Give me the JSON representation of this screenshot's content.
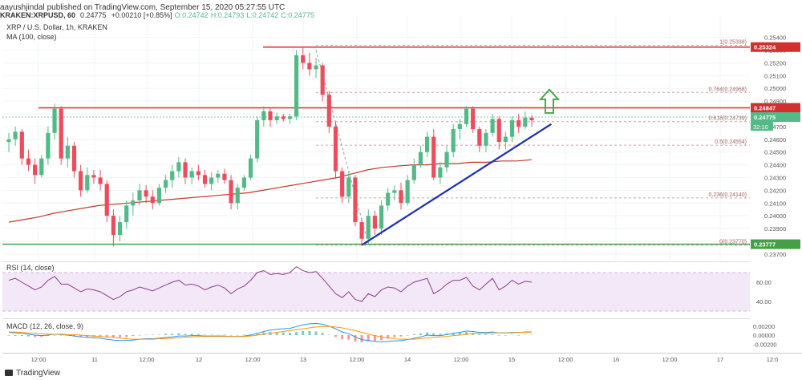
{
  "header": {
    "publisher": "aayushjindal",
    "published_text": "published on TradingView.com, September 15, 2020 05:27:55 UTC",
    "symbol": "KRAKEN:XRPUSD, 60",
    "last": "0.24775",
    "change": "+0.00210 [+0.85%]",
    "ohlc": {
      "o": "O:0.24742",
      "h": "H:0.24793",
      "l": "L:0.24742",
      "c": "C:0.24775"
    }
  },
  "legend": {
    "title": "XRP / U.S. Dollar, 1h, KRAKEN",
    "ma": "MA (100, close)",
    "rsi": "RSI (14, close)",
    "macd": "MACD (12, 26, close, 9)"
  },
  "footer": {
    "brand": "TradingView"
  },
  "colors": {
    "bull": "#53b987",
    "bear": "#eb4d5c",
    "ma": "#c0392b",
    "trend": "#1a2fb3",
    "resistance": "#d32f2f",
    "support": "#43a047",
    "fib": "#cfa0a0",
    "arrow": "#3fae49",
    "rsi": "#8e3a8e",
    "macd": "#2196f3",
    "signal": "#ff9800"
  },
  "chart_data": {
    "type": "candlestick",
    "symbol": "XRP/USD",
    "interval": "1h",
    "exchange": "KRAKEN",
    "ylim": [
      0.2368,
      0.2553
    ],
    "price_ticks": [
      "0.25400",
      "0.25300",
      "0.25200",
      "0.25100",
      "0.25000",
      "0.24900",
      "0.24800",
      "0.24700",
      "0.24600",
      "0.24500",
      "0.24400",
      "0.24300",
      "0.24200",
      "0.24100",
      "0.24000",
      "0.23900",
      "0.23800",
      "0.23700"
    ],
    "time_labels": [
      "12:00",
      "11",
      "12:00",
      "12",
      "12:00",
      "13",
      "12:00",
      "14",
      "12:00",
      "15",
      "12:00",
      "16",
      "12:00",
      "17",
      "12:0"
    ],
    "candles": [
      [
        0.2458,
        0.2465,
        0.245,
        0.246
      ],
      [
        0.246,
        0.247,
        0.2455,
        0.2466
      ],
      [
        0.2466,
        0.2468,
        0.244,
        0.2445
      ],
      [
        0.2445,
        0.2452,
        0.2435,
        0.244
      ],
      [
        0.244,
        0.2445,
        0.2425,
        0.2432
      ],
      [
        0.2432,
        0.2448,
        0.243,
        0.2445
      ],
      [
        0.2445,
        0.247,
        0.244,
        0.2465
      ],
      [
        0.2465,
        0.2488,
        0.246,
        0.2484
      ],
      [
        0.2484,
        0.2486,
        0.244,
        0.2445
      ],
      [
        0.2445,
        0.2462,
        0.2438,
        0.2455
      ],
      [
        0.2455,
        0.2458,
        0.243,
        0.2435
      ],
      [
        0.2435,
        0.244,
        0.2415,
        0.242
      ],
      [
        0.242,
        0.2438,
        0.2418,
        0.2432
      ],
      [
        0.2432,
        0.2436,
        0.2425,
        0.243
      ],
      [
        0.243,
        0.2436,
        0.242,
        0.2425
      ],
      [
        0.2425,
        0.2428,
        0.2395,
        0.24
      ],
      [
        0.24,
        0.2405,
        0.2376,
        0.2385
      ],
      [
        0.2385,
        0.24,
        0.238,
        0.2395
      ],
      [
        0.2395,
        0.2412,
        0.239,
        0.2408
      ],
      [
        0.2408,
        0.2418,
        0.24,
        0.2412
      ],
      [
        0.2412,
        0.2425,
        0.2408,
        0.242
      ],
      [
        0.242,
        0.2424,
        0.241,
        0.2415
      ],
      [
        0.2415,
        0.242,
        0.2405,
        0.241
      ],
      [
        0.241,
        0.2425,
        0.2408,
        0.2422
      ],
      [
        0.2422,
        0.2432,
        0.2418,
        0.2428
      ],
      [
        0.2428,
        0.244,
        0.2422,
        0.2435
      ],
      [
        0.2435,
        0.2446,
        0.243,
        0.2442
      ],
      [
        0.2442,
        0.2445,
        0.2425,
        0.243
      ],
      [
        0.243,
        0.2438,
        0.2425,
        0.2435
      ],
      [
        0.2435,
        0.244,
        0.2428,
        0.2432
      ],
      [
        0.2432,
        0.2436,
        0.2422,
        0.2425
      ],
      [
        0.2425,
        0.2434,
        0.242,
        0.243
      ],
      [
        0.243,
        0.2436,
        0.2426,
        0.2433
      ],
      [
        0.2433,
        0.2437,
        0.2425,
        0.2428
      ],
      [
        0.2428,
        0.2432,
        0.2405,
        0.241
      ],
      [
        0.241,
        0.2425,
        0.2405,
        0.2422
      ],
      [
        0.2422,
        0.2432,
        0.242,
        0.243
      ],
      [
        0.243,
        0.2448,
        0.2428,
        0.2445
      ],
      [
        0.2445,
        0.2478,
        0.2442,
        0.2475
      ],
      [
        0.2475,
        0.2486,
        0.247,
        0.2482
      ],
      [
        0.2482,
        0.2484,
        0.247,
        0.2475
      ],
      [
        0.2475,
        0.2481,
        0.2472,
        0.2478
      ],
      [
        0.2478,
        0.248,
        0.2474,
        0.2476
      ],
      [
        0.2476,
        0.248,
        0.2472,
        0.2478
      ],
      [
        0.2478,
        0.253,
        0.2475,
        0.2526
      ],
      [
        0.2526,
        0.2533,
        0.2515,
        0.252
      ],
      [
        0.252,
        0.2528,
        0.251,
        0.2515
      ],
      [
        0.2515,
        0.2524,
        0.2508,
        0.2518
      ],
      [
        0.2518,
        0.252,
        0.249,
        0.2495
      ],
      [
        0.2495,
        0.2498,
        0.2465,
        0.247
      ],
      [
        0.247,
        0.2474,
        0.243,
        0.2435
      ],
      [
        0.2435,
        0.2438,
        0.241,
        0.2415
      ],
      [
        0.2415,
        0.2435,
        0.241,
        0.243
      ],
      [
        0.243,
        0.2432,
        0.2392,
        0.2395
      ],
      [
        0.2395,
        0.2398,
        0.2377,
        0.2382
      ],
      [
        0.2382,
        0.2405,
        0.2378,
        0.24
      ],
      [
        0.24,
        0.2404,
        0.2385,
        0.239
      ],
      [
        0.239,
        0.2412,
        0.2385,
        0.2408
      ],
      [
        0.2408,
        0.2422,
        0.2404,
        0.2418
      ],
      [
        0.2418,
        0.2424,
        0.2412,
        0.242
      ],
      [
        0.242,
        0.2426,
        0.2405,
        0.241
      ],
      [
        0.241,
        0.2432,
        0.2408,
        0.2428
      ],
      [
        0.2428,
        0.2445,
        0.2425,
        0.244
      ],
      [
        0.244,
        0.2455,
        0.2438,
        0.245
      ],
      [
        0.245,
        0.2466,
        0.2446,
        0.2462
      ],
      [
        0.2462,
        0.2468,
        0.2428,
        0.243
      ],
      [
        0.243,
        0.2442,
        0.2425,
        0.2438
      ],
      [
        0.2438,
        0.2455,
        0.2434,
        0.245
      ],
      [
        0.245,
        0.2472,
        0.2446,
        0.2468
      ],
      [
        0.2468,
        0.2476,
        0.246,
        0.2472
      ],
      [
        0.2472,
        0.2486,
        0.247,
        0.2484
      ],
      [
        0.2484,
        0.2486,
        0.2465,
        0.2468
      ],
      [
        0.2468,
        0.247,
        0.245,
        0.2455
      ],
      [
        0.2455,
        0.2468,
        0.245,
        0.2465
      ],
      [
        0.2465,
        0.248,
        0.2462,
        0.2476
      ],
      [
        0.2476,
        0.2478,
        0.2452,
        0.2458
      ],
      [
        0.2458,
        0.2466,
        0.2452,
        0.2462
      ],
      [
        0.2462,
        0.2478,
        0.2458,
        0.2475
      ],
      [
        0.2475,
        0.248,
        0.2465,
        0.247
      ],
      [
        0.247,
        0.2482,
        0.2468,
        0.2477
      ],
      [
        0.2477,
        0.2479,
        0.247,
        0.2475
      ]
    ],
    "ma_100": [
      0.2395,
      0.2397,
      0.2399,
      0.2402,
      0.2404,
      0.2406,
      0.2408,
      0.2409,
      0.241,
      0.2411,
      0.2412,
      0.2413,
      0.2414,
      0.2415,
      0.2416,
      0.2417,
      0.2418,
      0.242,
      0.2422,
      0.2424,
      0.2426,
      0.2428,
      0.243,
      0.2433,
      0.2436,
      0.2438,
      0.2439,
      0.244,
      0.244,
      0.2441,
      0.2441,
      0.2442,
      0.2442,
      0.2443,
      0.2443,
      0.2444
    ],
    "levels": {
      "resistance_1": {
        "value": 0.25324,
        "label": "0.25324"
      },
      "resistance_2": {
        "value": 0.24847,
        "label": "0.24847"
      },
      "support": {
        "value": 0.23777,
        "label": "0.23777"
      },
      "current": {
        "value": 0.24775,
        "label": "0.24775"
      },
      "timer": "32:10"
    },
    "fibonacci": [
      {
        "ratio": "1",
        "value": 0.25338,
        "label": "1(0.25338)"
      },
      {
        "ratio": "0.764",
        "value": 0.24968,
        "label": "0.764(0.24968)"
      },
      {
        "ratio": "0.618",
        "value": 0.24739,
        "label": "0.618(0.24739)"
      },
      {
        "ratio": "0.5",
        "value": 0.24554,
        "label": "0.5(0.24554)"
      },
      {
        "ratio": "0.236",
        "value": 0.2414,
        "label": "0.236(0.24140)"
      },
      {
        "ratio": "0",
        "value": 0.2377,
        "label": "0(0.23770)"
      }
    ],
    "trendline": {
      "start": {
        "bar": 54,
        "price": 0.2377
      },
      "end": {
        "bar": 83,
        "price": 0.2472
      }
    },
    "rsi": {
      "ticks": [
        "60.00",
        "40.00"
      ],
      "ylim": [
        25,
        80
      ],
      "bands": [
        70,
        30
      ],
      "values": [
        62,
        64,
        60,
        56,
        52,
        55,
        62,
        66,
        58,
        58,
        54,
        50,
        53,
        52,
        50,
        46,
        42,
        45,
        50,
        52,
        55,
        53,
        51,
        54,
        57,
        60,
        62,
        57,
        58,
        56,
        52,
        55,
        57,
        54,
        48,
        53,
        56,
        62,
        70,
        72,
        68,
        69,
        68,
        70,
        76,
        72,
        70,
        71,
        64,
        56,
        48,
        44,
        50,
        42,
        40,
        48,
        45,
        52,
        55,
        54,
        50,
        56,
        60,
        62,
        64,
        48,
        52,
        58,
        62,
        62,
        65,
        56,
        52,
        58,
        64,
        52,
        56,
        62,
        58,
        61,
        60
      ]
    },
    "macd": {
      "ticks": [
        "0.00200",
        "0.00000",
        "-0.00200"
      ],
      "ylim": [
        -0.0032,
        0.0032
      ],
      "macd_line": [
        0.0006,
        0.0005,
        0.0004,
        0.0002,
        0.0,
        -0.0001,
        0.0,
        0.0002,
        0.0001,
        0.0,
        -0.0002,
        -0.0004,
        -0.0005,
        -0.0006,
        -0.0007,
        -0.0009,
        -0.0011,
        -0.0012,
        -0.0012,
        -0.0011,
        -0.0009,
        -0.0008,
        -0.0008,
        -0.0007,
        -0.0005,
        -0.0004,
        -0.0002,
        -0.0002,
        -0.0001,
        -0.0001,
        -0.0002,
        -0.0002,
        -0.0002,
        -0.0002,
        -0.0003,
        -0.0003,
        -0.0002,
        0.0,
        0.0004,
        0.0008,
        0.0011,
        0.0013,
        0.0014,
        0.0015,
        0.0019,
        0.0023,
        0.0025,
        0.0026,
        0.0024,
        0.002,
        0.0014,
        0.0007,
        0.0003,
        -0.0004,
        -0.001,
        -0.0012,
        -0.0014,
        -0.0015,
        -0.0014,
        -0.0013,
        -0.0012,
        -0.001,
        -0.0007,
        -0.0004,
        0.0,
        -0.0001,
        -0.0001,
        0.0001,
        0.0004,
        0.0006,
        0.0009,
        0.0008,
        0.0006,
        0.0006,
        0.0007,
        0.0005,
        0.0005,
        0.0006,
        0.0006,
        0.0007,
        0.0007
      ],
      "signal_line": [
        0.0007,
        0.0007,
        0.0006,
        0.0005,
        0.0004,
        0.0003,
        0.0002,
        0.0002,
        0.0002,
        0.0001,
        0.0001,
        0.0,
        -0.0001,
        -0.0002,
        -0.0003,
        -0.0004,
        -0.0005,
        -0.0007,
        -0.0008,
        -0.0009,
        -0.0009,
        -0.0009,
        -0.0009,
        -0.0008,
        -0.0008,
        -0.0007,
        -0.0006,
        -0.0005,
        -0.0004,
        -0.0003,
        -0.0003,
        -0.0003,
        -0.0003,
        -0.0003,
        -0.0003,
        -0.0003,
        -0.0003,
        -0.0002,
        0.0,
        0.0002,
        0.0004,
        0.0006,
        0.0008,
        0.001,
        0.0012,
        0.0014,
        0.0016,
        0.0018,
        0.0019,
        0.0019,
        0.0018,
        0.0016,
        0.0013,
        0.001,
        0.0006,
        0.0002,
        -0.0001,
        -0.0004,
        -0.0006,
        -0.0008,
        -0.0009,
        -0.0009,
        -0.0009,
        -0.0008,
        -0.0006,
        -0.0005,
        -0.0004,
        -0.0003,
        -0.0001,
        0.0,
        0.0002,
        0.0003,
        0.0004,
        0.0004,
        0.0005,
        0.0005,
        0.0005,
        0.0005,
        0.0006,
        0.0006,
        0.0006
      ]
    }
  }
}
